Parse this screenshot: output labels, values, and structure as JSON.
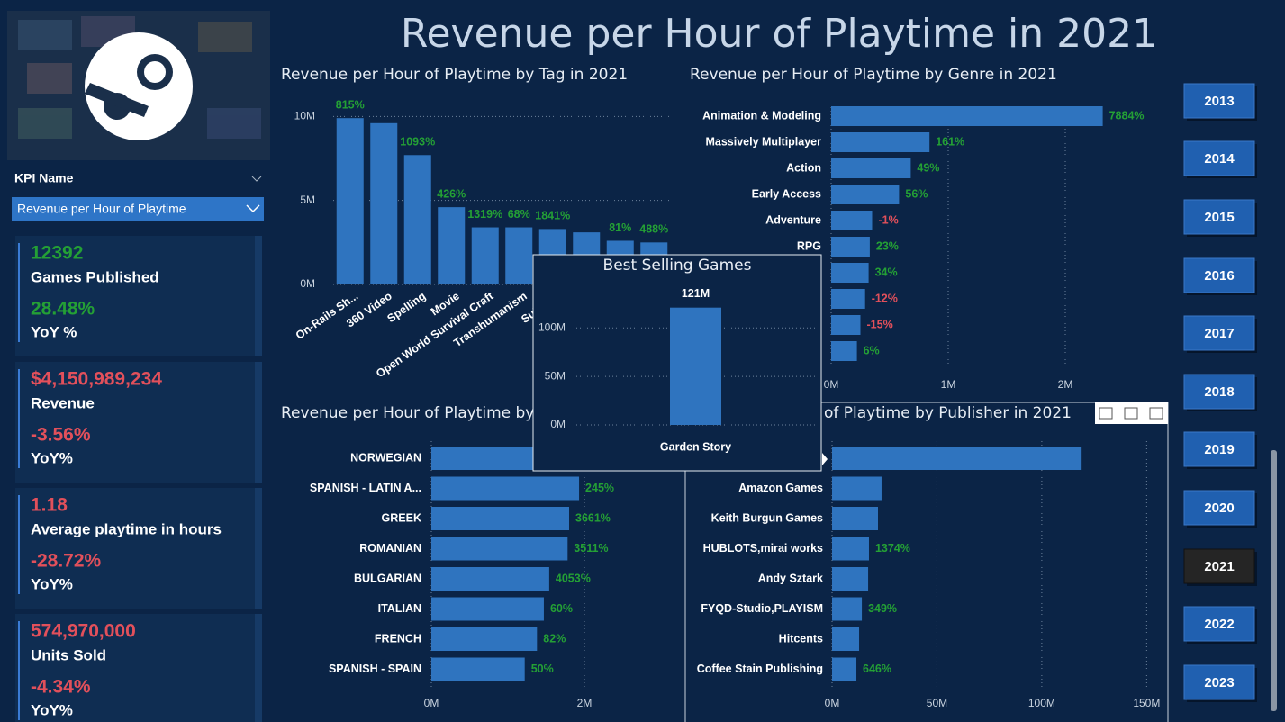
{
  "title": "Revenue per Hour of Playtime in 2021",
  "slicer": {
    "label": "KPI Name",
    "selected": "Revenue per Hour of Playtime"
  },
  "kpi_cards": [
    {
      "value": "12392",
      "label": "Games Published",
      "yoy": "28.48%",
      "yoy_label": "YoY %",
      "color": "#24a035"
    },
    {
      "value": "$4,150,989,234",
      "label": "Revenue",
      "yoy": "-3.56%",
      "yoy_label": "YoY%",
      "color": "#e2505b"
    },
    {
      "value": "1.18",
      "label": "Average playtime in hours",
      "yoy": "-28.72%",
      "yoy_label": "YoY%",
      "color": "#e2505b"
    },
    {
      "value": "574,970,000",
      "label": "Units Sold",
      "yoy": "-4.34%",
      "yoy_label": "YoY%",
      "color": "#e2505b"
    }
  ],
  "years": {
    "options": [
      "2013",
      "2014",
      "2015",
      "2016",
      "2017",
      "2018",
      "2019",
      "2020",
      "2021",
      "2022",
      "2023"
    ],
    "selected": "2021"
  },
  "chart_data": [
    {
      "type": "bar",
      "orientation": "vertical",
      "title": "Revenue per Hour of Playtime by Tag in 2021",
      "categories": [
        "On-Rails Sh...",
        "360 Video",
        "Spelling",
        "Movie",
        "Open World Survival Craft",
        "Transhumanism",
        "Submari",
        null,
        null,
        null
      ],
      "values": [
        9900000,
        9600000,
        7700000,
        4600000,
        3400000,
        3400000,
        3300000,
        3100000,
        2600000,
        2500000
      ],
      "yoy_labels": [
        "815%",
        null,
        "1093%",
        "426%",
        "1319%",
        "68%",
        "1841%",
        null,
        "81%",
        "488%"
      ],
      "color": "#2f74bf",
      "ylim": [
        0,
        10500000
      ],
      "yticks": [
        {
          "value": 0,
          "label": "0M"
        },
        {
          "value": 5000000,
          "label": "5M"
        },
        {
          "value": 10000000,
          "label": "10M"
        }
      ],
      "grid": true
    },
    {
      "type": "bar",
      "orientation": "horizontal",
      "title": "Revenue per Hour of Playtime by Genre in 2021",
      "categories": [
        "Animation & Modeling",
        "Massively Multiplayer",
        "Action",
        "Early Access",
        "Adventure",
        "RPG",
        null,
        null,
        null,
        null
      ],
      "values": [
        2320000,
        840000,
        680000,
        580000,
        350000,
        330000,
        320000,
        290000,
        250000,
        220000
      ],
      "yoy_labels": [
        "7884%",
        "161%",
        "49%",
        "56%",
        "-1%",
        "23%",
        "34%",
        "-12%",
        "-15%",
        "6%"
      ],
      "color": "#2f74bf",
      "xlim": [
        0,
        2400000
      ],
      "xticks": [
        {
          "value": 0,
          "label": "0M"
        },
        {
          "value": 1000000,
          "label": "1M"
        },
        {
          "value": 2000000,
          "label": "2M"
        }
      ],
      "grid": true
    },
    {
      "type": "bar",
      "orientation": "horizontal",
      "title": "Revenue per Hour of Playtime by",
      "categories": [
        "NORWEGIAN",
        "SPANISH - LATIN A...",
        "GREEK",
        "ROMANIAN",
        "BULGARIAN",
        "ITALIAN",
        "FRENCH",
        "SPANISH - SPAIN"
      ],
      "values": [
        2100000,
        1930000,
        1800000,
        1780000,
        1540000,
        1470000,
        1380000,
        1220000
      ],
      "yoy_labels": [
        null,
        "245%",
        "3661%",
        "3511%",
        "4053%",
        "60%",
        "82%",
        "50%"
      ],
      "color": "#2f74bf",
      "xlim": [
        0,
        3200000
      ],
      "xticks": [
        {
          "value": 0,
          "label": "0M"
        },
        {
          "value": 2000000,
          "label": "2M"
        }
      ],
      "grid": true
    },
    {
      "type": "bar",
      "orientation": "horizontal",
      "title": "of Playtime by Publisher in 2021",
      "categories": [
        null,
        "Amazon Games",
        "Keith Burgun Games",
        "HUBLOTS,mirai works",
        "Andy Sztark",
        "FYQD-Studio,PLAYISM",
        "Hitcents",
        "Coffee Stain Publishing"
      ],
      "values": [
        119000000,
        23600000,
        21900000,
        17600000,
        17200000,
        14200000,
        12900000,
        11600000
      ],
      "yoy_labels": [
        null,
        null,
        null,
        "1374%",
        null,
        "349%",
        null,
        "646%"
      ],
      "color": "#2f74bf",
      "xlim": [
        0,
        155000000
      ],
      "xticks": [
        {
          "value": 0,
          "label": "0M"
        },
        {
          "value": 50000000,
          "label": "50M"
        },
        {
          "value": 100000000,
          "label": "100M"
        },
        {
          "value": 150000000,
          "label": "150M"
        }
      ],
      "grid": true
    },
    {
      "type": "bar",
      "orientation": "vertical",
      "title": "Best Selling Games",
      "categories": [
        "Garden Story"
      ],
      "values": [
        121000000
      ],
      "value_labels": [
        "121M"
      ],
      "color": "#2f74bf",
      "ylim": [
        0,
        130000000
      ],
      "yticks": [
        {
          "value": 0,
          "label": "0M"
        },
        {
          "value": 50000000,
          "label": "50M"
        },
        {
          "value": 100000000,
          "label": "100M"
        }
      ],
      "grid": true
    }
  ]
}
